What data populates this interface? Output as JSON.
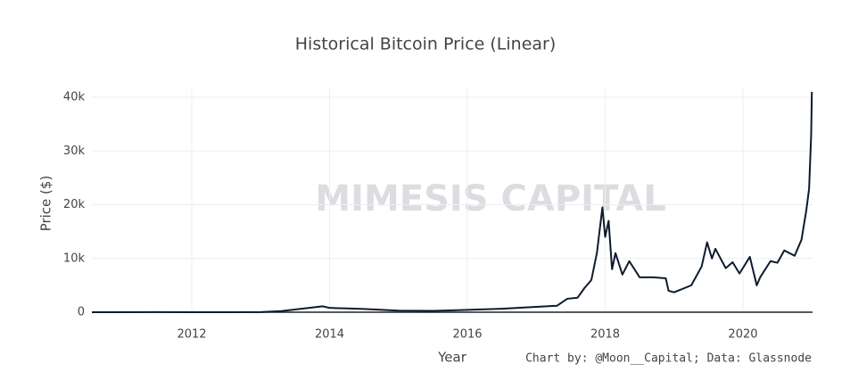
{
  "chart_data": {
    "type": "line",
    "title": "Historical Bitcoin Price (Linear)",
    "x_label": "Year",
    "y_label": "Price ($)",
    "credit": "Chart by: @Moon__Capital; Data: Glassnode",
    "watermark": "MIMESIS CAPITAL",
    "xlim": [
      2010.55,
      2021.01
    ],
    "xticks": [
      2012,
      2014,
      2016,
      2018,
      2020
    ],
    "ylim": [
      0,
      41500
    ],
    "yticks": [
      0,
      {
        "value": 10000,
        "label": "10k"
      },
      {
        "value": 20000,
        "label": "20k"
      },
      {
        "value": 30000,
        "label": "30k"
      },
      {
        "value": 40000,
        "label": "40k"
      }
    ],
    "grid": true,
    "series": [
      {
        "name": "Price",
        "color": "#0d1b2e",
        "x": [
          2010.55,
          2011.5,
          2012.0,
          2013.0,
          2013.3,
          2013.9,
          2014.0,
          2014.5,
          2015.0,
          2015.5,
          2016.0,
          2016.5,
          2017.0,
          2017.3,
          2017.45,
          2017.6,
          2017.7,
          2017.8,
          2017.88,
          2017.96,
          2018.0,
          2018.05,
          2018.1,
          2018.15,
          2018.25,
          2018.35,
          2018.5,
          2018.7,
          2018.88,
          2018.92,
          2019.0,
          2019.25,
          2019.4,
          2019.48,
          2019.55,
          2019.6,
          2019.75,
          2019.85,
          2019.95,
          2020.1,
          2020.2,
          2020.25,
          2020.4,
          2020.5,
          2020.6,
          2020.75,
          2020.85,
          2020.92,
          2020.96,
          2020.99,
          2021.0
        ],
        "values": [
          0.07,
          15,
          5,
          13,
          200,
          1100,
          800,
          600,
          300,
          250,
          430,
          650,
          1000,
          1200,
          2500,
          2700,
          4500,
          6000,
          11000,
          19500,
          14000,
          17000,
          8000,
          11000,
          7000,
          9500,
          6500,
          6500,
          6300,
          4000,
          3700,
          5000,
          8500,
          13000,
          10000,
          11800,
          8200,
          9300,
          7200,
          10300,
          5000,
          6500,
          9500,
          9200,
          11500,
          10500,
          13500,
          19000,
          23000,
          33000,
          41000
        ]
      }
    ]
  }
}
